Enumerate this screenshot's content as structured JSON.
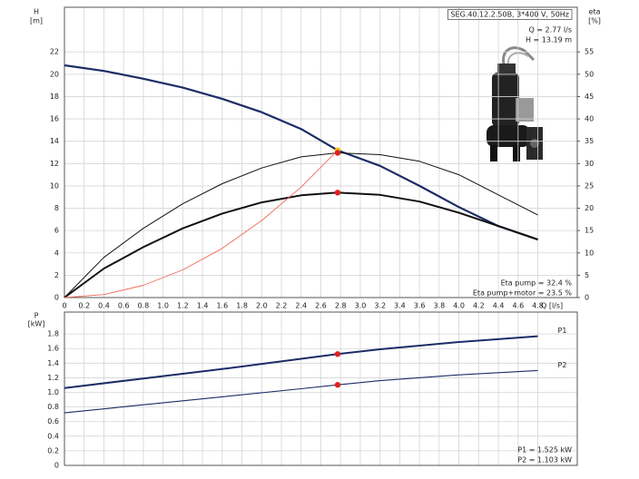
{
  "chart_data": [
    {
      "type": "line",
      "title": "SEG.40.12.2.50B, 3*400 V, 50Hz",
      "ylabel": "H",
      "yunit": "[m]",
      "y2label": "eta",
      "y2unit": "[%]",
      "xlabel": "Q [l/s]",
      "annotations": [
        "Q = 2.77 l/s",
        "H = 13.19 m",
        "Eta pump = 32.4 %",
        "Eta pump+motor = 23.5 %"
      ],
      "x": [
        0,
        0.4,
        0.8,
        1.2,
        1.6,
        2.0,
        2.4,
        2.77,
        3.2,
        3.6,
        4.0,
        4.4,
        4.8
      ],
      "xlim": [
        0,
        5.2
      ],
      "xticks": [
        0,
        0.2,
        0.4,
        0.6,
        0.8,
        {
          "value": 1,
          "label": "1.0"
        },
        1.2,
        1.4,
        1.6,
        1.8,
        {
          "value": 2,
          "label": "2.0"
        },
        2.2,
        2.4,
        2.6,
        2.8,
        {
          "value": 3,
          "label": "3.0"
        },
        3.2,
        3.4,
        3.6,
        3.8,
        {
          "value": 4,
          "label": "4.0"
        },
        4.2,
        4.4,
        4.6,
        4.8
      ],
      "xtick_labels": true,
      "ylim": [
        0,
        26
      ],
      "yticks": [
        0,
        2,
        4,
        6,
        8,
        10,
        12,
        14,
        16,
        18,
        20,
        22
      ],
      "y2lim": [
        0,
        65
      ],
      "y2ticks": [
        0,
        5,
        10,
        15,
        20,
        25,
        30,
        35,
        40,
        45,
        50,
        55
      ],
      "grid": true,
      "series": [
        {
          "color": "#1c2c66",
          "width": 2.2,
          "values": [
            20.8,
            20.3,
            19.6,
            18.8,
            17.8,
            16.6,
            15.1,
            13.19,
            11.8,
            10.0,
            8.1,
            6.4,
            5.2
          ]
        },
        {
          "color": "#111111",
          "width": 1,
          "axis": "y2",
          "values": [
            0,
            9,
            15.5,
            21,
            25.5,
            29,
            31.5,
            32.4,
            32,
            30.5,
            27.5,
            23,
            18.5
          ]
        },
        {
          "color": "#111111",
          "width": 2,
          "axis": "y2",
          "values": [
            0,
            6.5,
            11.3,
            15.5,
            18.8,
            21.3,
            22.9,
            23.5,
            23,
            21.5,
            19,
            16,
            13
          ]
        },
        {
          "color": "#f06a5a",
          "width": 0.9,
          "values": [
            0,
            0.27,
            1.1,
            2.48,
            4.4,
            6.9,
            9.9,
            13.19,
            null,
            null,
            null,
            null,
            null
          ]
        }
      ],
      "markers": [
        {
          "x": 2.77,
          "y": 13.19,
          "color": "#f5c000"
        },
        {
          "x": 2.77,
          "y": 32.4,
          "axis": "y2",
          "color": "#e02020"
        },
        {
          "x": 2.77,
          "y": 23.5,
          "axis": "y2",
          "color": "#e02020"
        }
      ]
    },
    {
      "type": "line",
      "ylabel": "P",
      "yunit": "[kW]",
      "annotations": [
        "P1 = 1.525 kW",
        "P2 = 1.103 kW"
      ],
      "x": [
        0,
        0.8,
        1.6,
        2.4,
        2.77,
        3.2,
        4.0,
        4.8
      ],
      "xlim": [
        0,
        5.2
      ],
      "xticks": [
        0,
        0.2,
        0.4,
        0.6,
        0.8,
        1,
        1.2,
        1.4,
        1.6,
        1.8,
        2,
        2.2,
        2.4,
        2.6,
        2.8,
        3,
        3.2,
        3.4,
        3.6,
        3.8,
        4,
        4.2,
        4.4,
        4.6,
        4.8
      ],
      "xtick_labels": false,
      "ylim": [
        0,
        2.1
      ],
      "yticks": [
        0,
        0.2,
        0.4,
        0.6,
        0.8,
        {
          "value": 1,
          "label": "1.0"
        },
        1.2,
        1.4,
        1.6,
        1.8
      ],
      "grid": true,
      "series": [
        {
          "name": "P1",
          "color": "#1c2c66",
          "width": 2,
          "values": [
            1.06,
            1.19,
            1.32,
            1.46,
            1.525,
            1.59,
            1.69,
            1.77
          ]
        },
        {
          "name": "P2",
          "color": "#1c2c66",
          "width": 1.1,
          "values": [
            0.72,
            0.83,
            0.94,
            1.05,
            1.103,
            1.16,
            1.24,
            1.3
          ]
        }
      ],
      "markers": [
        {
          "x": 2.77,
          "y": 1.525,
          "color": "#e02020"
        },
        {
          "x": 2.77,
          "y": 1.103,
          "color": "#e02020"
        }
      ]
    }
  ]
}
